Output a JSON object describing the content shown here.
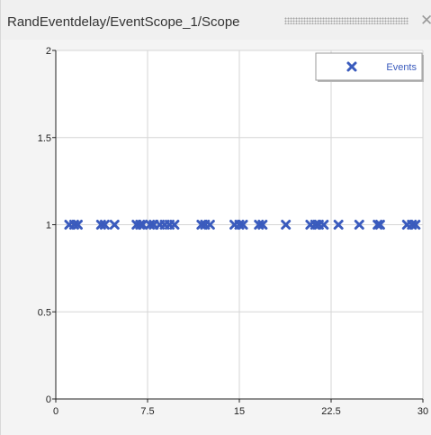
{
  "window": {
    "title": "RandEventdelay/EventScope_1/Scope",
    "close_glyph": "✕"
  },
  "colors": {
    "marker": "#3a5bbd",
    "grid": "#d6d6d6",
    "axis": "#222222",
    "plot_bg": "#ffffff"
  },
  "chart_data": {
    "type": "scatter",
    "xlim": [
      0,
      30
    ],
    "ylim": [
      0,
      2
    ],
    "x_ticks": [
      0,
      7.5,
      15,
      22.5,
      30
    ],
    "x_tick_labels": [
      "0",
      "7.5",
      "15",
      "22.5",
      "30"
    ],
    "y_ticks": [
      0,
      0.5,
      1,
      1.5,
      2
    ],
    "y_tick_labels": [
      "0",
      "0.5",
      "1",
      "1.5",
      "2"
    ],
    "grid": true,
    "legend_position": "top-right",
    "series": [
      {
        "name": "Events",
        "marker": "x",
        "x": [
          1.1,
          1.5,
          1.8,
          3.7,
          4.0,
          4.8,
          6.6,
          6.9,
          7.1,
          7.7,
          8.0,
          8.5,
          8.9,
          9.3,
          9.7,
          11.9,
          12.2,
          12.6,
          14.6,
          15.0,
          15.3,
          16.6,
          16.9,
          18.8,
          20.8,
          21.2,
          21.5,
          21.9,
          23.1,
          24.8,
          26.3,
          26.5,
          28.7,
          29.1,
          29.4
        ],
        "y": [
          1,
          1,
          1,
          1,
          1,
          1,
          1,
          1,
          1,
          1,
          1,
          1,
          1,
          1,
          1,
          1,
          1,
          1,
          1,
          1,
          1,
          1,
          1,
          1,
          1,
          1,
          1,
          1,
          1,
          1,
          1,
          1,
          1,
          1,
          1
        ]
      }
    ]
  }
}
